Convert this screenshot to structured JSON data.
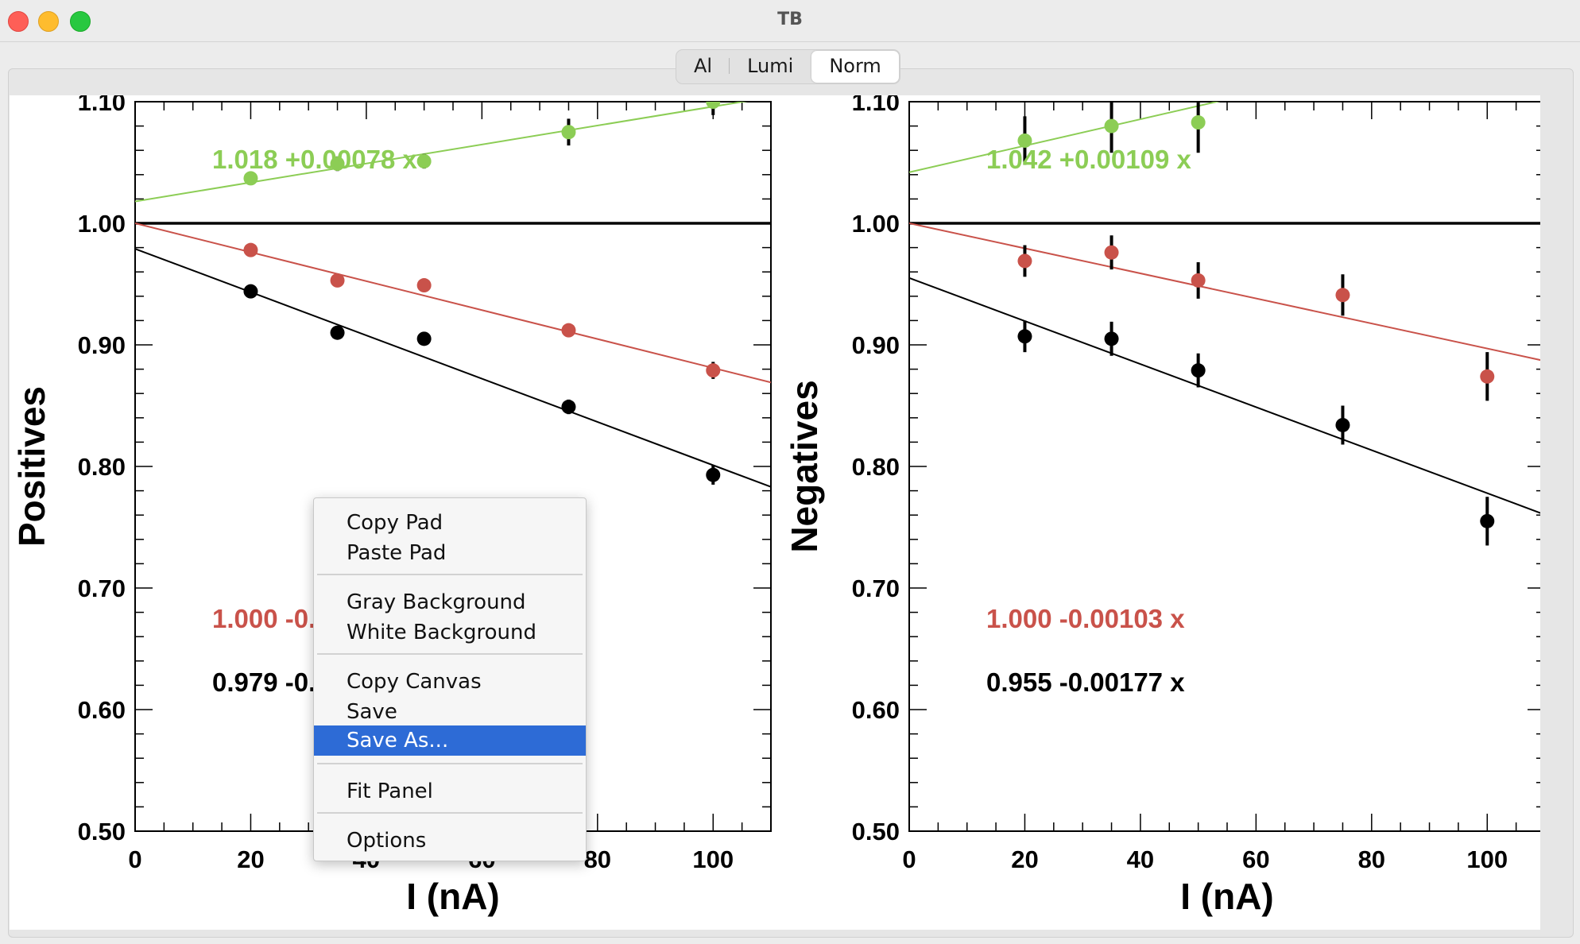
{
  "window": {
    "title": "TB"
  },
  "tabs": [
    {
      "label": "Al",
      "active": false
    },
    {
      "label": "Lumi",
      "active": false
    },
    {
      "label": "Norm",
      "active": true
    }
  ],
  "context_menu": {
    "items": [
      "Copy Pad",
      "Paste Pad",
      "Gray Background",
      "White Background",
      "Copy Canvas",
      "Save",
      "Save As...",
      "Fit Panel",
      "Options"
    ],
    "selected": "Save As..."
  },
  "colors": {
    "green": "#8ccd55",
    "red": "#c9524a",
    "black": "#000000",
    "menu_selection": "#2d6bd6"
  },
  "chart_data": [
    {
      "type": "scatter",
      "ylabel": "Positives",
      "xlabel": "I (nA)",
      "xlim": [
        0,
        110
      ],
      "ylim": [
        0.5,
        1.1
      ],
      "xticks": [
        "0",
        "20",
        "40",
        "60",
        "80",
        "100"
      ],
      "yticks": [
        "0.50",
        "0.60",
        "0.70",
        "0.80",
        "0.90",
        "1.00",
        "1.10"
      ],
      "reference_line": 1.0,
      "series": [
        {
          "color": "green",
          "fit_label": "1.018 +0.00078 x",
          "fit": [
            1.018,
            0.00078
          ],
          "x": [
            20,
            35,
            50,
            75,
            100
          ],
          "y": [
            1.037,
            1.049,
            1.051,
            1.075,
            1.1
          ],
          "err": [
            0.004,
            0.006,
            0.006,
            0.011,
            0.011
          ]
        },
        {
          "color": "red",
          "fit_label": "1.000 -0.00…",
          "fit": [
            1.0,
            -0.00119
          ],
          "x": [
            20,
            35,
            50,
            75,
            100
          ],
          "y": [
            0.978,
            0.953,
            0.949,
            0.912,
            0.879
          ],
          "err": [
            0.004,
            0.004,
            0.004,
            0.005,
            0.007
          ]
        },
        {
          "color": "black",
          "fit_label": "0.979 -0.0…",
          "fit": [
            0.979,
            -0.00178
          ],
          "x": [
            20,
            35,
            50,
            75,
            100
          ],
          "y": [
            0.944,
            0.91,
            0.905,
            0.849,
            0.793
          ],
          "err": [
            0.004,
            0.004,
            0.004,
            0.006,
            0.008
          ]
        }
      ]
    },
    {
      "type": "scatter",
      "ylabel": "Negatives",
      "xlabel": "I (nA)",
      "xlim": [
        0,
        110
      ],
      "ylim": [
        0.5,
        1.1
      ],
      "xticks": [
        "0",
        "20",
        "40",
        "60",
        "80",
        "100"
      ],
      "yticks": [
        "0.50",
        "0.60",
        "0.70",
        "0.80",
        "0.90",
        "1.00",
        "1.10"
      ],
      "reference_line": 1.0,
      "series": [
        {
          "color": "green",
          "fit_label": "1.042 +0.00109 x",
          "fit": [
            1.042,
            0.00109
          ],
          "x": [
            20,
            35,
            50
          ],
          "y": [
            1.068,
            1.08,
            1.083
          ],
          "err": [
            0.02,
            0.022,
            0.025
          ]
        },
        {
          "color": "red",
          "fit_label": "1.000 -0.00103 x",
          "fit": [
            1.0,
            -0.00103
          ],
          "x": [
            20,
            35,
            50,
            75,
            100
          ],
          "y": [
            0.969,
            0.976,
            0.953,
            0.941,
            0.874
          ],
          "err": [
            0.013,
            0.014,
            0.015,
            0.017,
            0.02
          ]
        },
        {
          "color": "black",
          "fit_label": "0.955 -0.00177 x",
          "fit": [
            0.955,
            -0.00177
          ],
          "x": [
            20,
            35,
            50,
            75,
            100
          ],
          "y": [
            0.907,
            0.905,
            0.879,
            0.834,
            0.755
          ],
          "err": [
            0.013,
            0.014,
            0.014,
            0.016,
            0.02
          ]
        }
      ]
    }
  ]
}
